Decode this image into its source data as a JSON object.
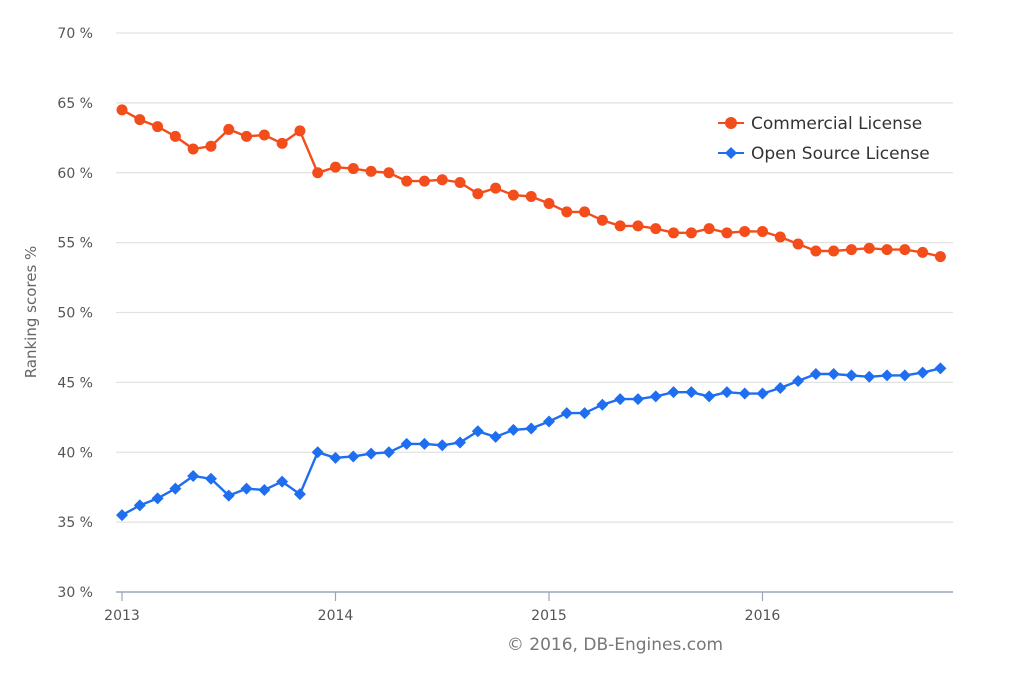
{
  "chart_data": {
    "type": "line",
    "xlabel": "",
    "ylabel": "Ranking scores %",
    "ylim": [
      30,
      70
    ],
    "xlim": [
      2013.0,
      2016.9
    ],
    "yticks": [
      30,
      35,
      40,
      45,
      50,
      55,
      60,
      65,
      70
    ],
    "ytick_labels": [
      "30 %",
      "35 %",
      "40 %",
      "45 %",
      "50 %",
      "55 %",
      "60 %",
      "65 %",
      "70 %"
    ],
    "xticks": [
      2013,
      2014,
      2015,
      2016
    ],
    "xtick_labels": [
      "2013",
      "2014",
      "2015",
      "2016"
    ],
    "grid": "horizontal",
    "legend_position": "top-right",
    "credit": "© 2016, DB-Engines.com",
    "x_start": "2013-01",
    "x_step": "monthly",
    "series": [
      {
        "name": "Commercial License",
        "color": "#f24d1b",
        "marker": "circle",
        "values": [
          64.5,
          63.8,
          63.3,
          62.6,
          61.7,
          61.9,
          63.1,
          62.6,
          62.7,
          62.1,
          63.0,
          60.0,
          60.4,
          60.3,
          60.1,
          60.0,
          59.4,
          59.4,
          59.5,
          59.3,
          58.5,
          58.9,
          58.4,
          58.3,
          57.8,
          57.2,
          57.2,
          56.6,
          56.2,
          56.2,
          56.0,
          55.7,
          55.7,
          56.0,
          55.7,
          55.8,
          55.8,
          55.4,
          54.9,
          54.4,
          54.4,
          54.5,
          54.6,
          54.5,
          54.5,
          54.3,
          54.0
        ]
      },
      {
        "name": "Open Source License",
        "color": "#1f6ef0",
        "marker": "diamond",
        "values": [
          35.5,
          36.2,
          36.7,
          37.4,
          38.3,
          38.1,
          36.9,
          37.4,
          37.3,
          37.9,
          37.0,
          40.0,
          39.6,
          39.7,
          39.9,
          40.0,
          40.6,
          40.6,
          40.5,
          40.7,
          41.5,
          41.1,
          41.6,
          41.7,
          42.2,
          42.8,
          42.8,
          43.4,
          43.8,
          43.8,
          44.0,
          44.3,
          44.3,
          44.0,
          44.3,
          44.2,
          44.2,
          44.6,
          45.1,
          45.6,
          45.6,
          45.5,
          45.4,
          45.5,
          45.5,
          45.7,
          46.0
        ]
      }
    ]
  }
}
